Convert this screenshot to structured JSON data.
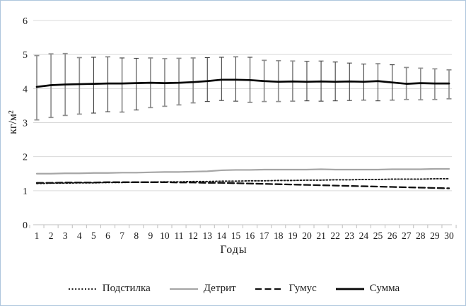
{
  "window": {
    "background": "#ffffff",
    "border_color": "#aec6dd"
  },
  "chart_style": {
    "grid_color": "#d9d9d9",
    "axis_color": "#bfbfbf",
    "text_color": "#1a1a1a",
    "error_bar_gray": "#8f8f8f",
    "error_bar_dark": "#404040"
  },
  "chart_data": {
    "type": "line",
    "title": "",
    "xlabel": "Годы",
    "ylabel": "кг/м²",
    "x": [
      "1",
      "2",
      "3",
      "4",
      "5",
      "6",
      "7",
      "8",
      "9",
      "10",
      "11",
      "12",
      "13",
      "14",
      "15",
      "16",
      "17",
      "18",
      "19",
      "20",
      "21",
      "22",
      "23",
      "24",
      "25",
      "26",
      "27",
      "28",
      "29",
      "30"
    ],
    "ylim": [
      0,
      6
    ],
    "yticks": [
      0,
      1,
      2,
      3,
      4,
      5,
      6
    ],
    "grid": "horizontal",
    "legend_position": "bottom",
    "series": [
      {
        "name": "Подстилка",
        "style": "dotted",
        "color": "#1a1a1a",
        "width": 1.9,
        "dash": "1.9 2.7",
        "values": [
          1.21,
          1.22,
          1.22,
          1.23,
          1.23,
          1.24,
          1.24,
          1.25,
          1.25,
          1.26,
          1.26,
          1.27,
          1.27,
          1.28,
          1.28,
          1.29,
          1.29,
          1.3,
          1.3,
          1.31,
          1.31,
          1.32,
          1.32,
          1.33,
          1.33,
          1.34,
          1.34,
          1.34,
          1.35,
          1.35
        ]
      },
      {
        "name": "Детрит",
        "style": "solid",
        "color": "#a6a6a6",
        "width": 2.2,
        "dash": "",
        "values": [
          1.5,
          1.5,
          1.51,
          1.51,
          1.52,
          1.52,
          1.53,
          1.53,
          1.54,
          1.55,
          1.55,
          1.56,
          1.57,
          1.6,
          1.61,
          1.61,
          1.62,
          1.62,
          1.62,
          1.62,
          1.63,
          1.62,
          1.62,
          1.62,
          1.62,
          1.63,
          1.63,
          1.63,
          1.64,
          1.64
        ]
      },
      {
        "name": "Гумус",
        "style": "dashed",
        "color": "#111111",
        "width": 2.3,
        "dash": "9 4.5",
        "values": [
          1.23,
          1.23,
          1.24,
          1.24,
          1.24,
          1.25,
          1.25,
          1.25,
          1.25,
          1.25,
          1.24,
          1.24,
          1.23,
          1.23,
          1.22,
          1.21,
          1.2,
          1.19,
          1.18,
          1.17,
          1.16,
          1.15,
          1.14,
          1.13,
          1.12,
          1.11,
          1.1,
          1.09,
          1.08,
          1.07
        ]
      },
      {
        "name": "Сумма",
        "style": "solid",
        "color": "#050505",
        "width": 2.7,
        "dash": "",
        "values": [
          4.05,
          4.1,
          4.12,
          4.13,
          4.14,
          4.15,
          4.15,
          4.16,
          4.17,
          4.16,
          4.17,
          4.19,
          4.22,
          4.26,
          4.26,
          4.25,
          4.22,
          4.2,
          4.21,
          4.2,
          4.21,
          4.2,
          4.21,
          4.2,
          4.22,
          4.18,
          4.14,
          4.16,
          4.15,
          4.15
        ],
        "error_bars": {
          "low": [
            3.08,
            3.15,
            3.21,
            3.25,
            3.28,
            3.32,
            3.31,
            3.37,
            3.44,
            3.48,
            3.52,
            3.58,
            3.62,
            3.65,
            3.63,
            3.6,
            3.62,
            3.62,
            3.63,
            3.64,
            3.63,
            3.64,
            3.65,
            3.66,
            3.64,
            3.66,
            3.68,
            3.67,
            3.68,
            3.7
          ],
          "high": [
            4.97,
            5.02,
            5.03,
            4.91,
            4.92,
            4.93,
            4.9,
            4.89,
            4.9,
            4.88,
            4.89,
            4.9,
            4.91,
            4.92,
            4.93,
            4.92,
            4.83,
            4.82,
            4.81,
            4.8,
            4.81,
            4.78,
            4.75,
            4.72,
            4.73,
            4.7,
            4.62,
            4.6,
            4.58,
            4.55
          ],
          "tone": [
            "g",
            "g",
            "g",
            "g",
            "d",
            "d",
            "d",
            "d",
            "g",
            "g",
            "g",
            "g",
            "d",
            "d",
            "d",
            "d",
            "g",
            "g",
            "g",
            "d",
            "d",
            "d",
            "d",
            "d",
            "d",
            "d",
            "g",
            "g",
            "g",
            "g"
          ]
        }
      }
    ]
  }
}
